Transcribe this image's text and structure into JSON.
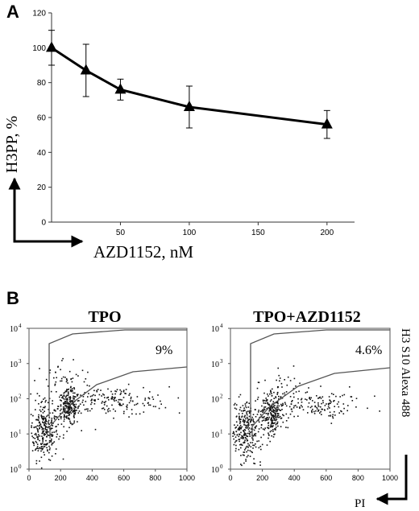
{
  "chart_data": [
    {
      "panel": "A",
      "type": "line",
      "xlabel": "AZD1152, nM",
      "ylabel": "H3PP, %",
      "xlim": [
        0,
        220
      ],
      "ylim": [
        0,
        120
      ],
      "xticks": [
        "50",
        "100",
        "150",
        "200"
      ],
      "yticks": [
        "0",
        "20",
        "40",
        "60",
        "80",
        "100",
        "120"
      ],
      "x": [
        0,
        25,
        50,
        100,
        200
      ],
      "y": [
        100,
        87,
        76,
        66,
        56
      ],
      "err": [
        10,
        15,
        6,
        12,
        8
      ],
      "marker": "triangle",
      "color": "#000000"
    },
    {
      "panel": "B",
      "type": "scatter",
      "subtype": "flow-cytometry",
      "title": "TPO",
      "gate_label": "9%",
      "xlim": [
        0,
        1000
      ],
      "xticks": [
        "0",
        "200",
        "400",
        "600",
        "800",
        "1000"
      ],
      "yscale": "log",
      "ylim_exp": [
        0,
        4
      ],
      "ytick_base": "10",
      "yticks_exp": [
        "0",
        "1",
        "2",
        "3",
        "4"
      ],
      "clusters": [
        {
          "x": 90,
          "y_log": 1.1,
          "n": 260,
          "sx": 45,
          "sy": 0.4
        },
        {
          "x": 250,
          "y_log": 1.75,
          "n": 200,
          "sx": 35,
          "sy": 0.25
        },
        {
          "x": 520,
          "y_log": 1.95,
          "n": 170,
          "sx": 180,
          "sy": 0.2
        },
        {
          "x": 220,
          "y_log": 2.5,
          "n": 60,
          "sx": 100,
          "sy": 0.35
        }
      ]
    },
    {
      "panel": "B",
      "type": "scatter",
      "subtype": "flow-cytometry",
      "title": "TPO+AZD1152",
      "gate_label": "4.6%",
      "xlabel": "PI",
      "ylabel": "H3 S10 Alexa 488",
      "xlim": [
        0,
        1000
      ],
      "xticks": [
        "0",
        "200",
        "400",
        "600",
        "800",
        "1000"
      ],
      "yscale": "log",
      "ylim_exp": [
        0,
        4
      ],
      "ytick_base": "10",
      "yticks_exp": [
        "0",
        "1",
        "2",
        "3",
        "4"
      ],
      "clusters": [
        {
          "x": 90,
          "y_log": 1.1,
          "n": 280,
          "sx": 50,
          "sy": 0.4
        },
        {
          "x": 260,
          "y_log": 1.6,
          "n": 220,
          "sx": 35,
          "sy": 0.3
        },
        {
          "x": 520,
          "y_log": 1.85,
          "n": 150,
          "sx": 160,
          "sy": 0.2
        },
        {
          "x": 300,
          "y_log": 2.4,
          "n": 35,
          "sx": 90,
          "sy": 0.3
        }
      ]
    }
  ],
  "panel_labels": {
    "a": "A",
    "b": "B"
  }
}
